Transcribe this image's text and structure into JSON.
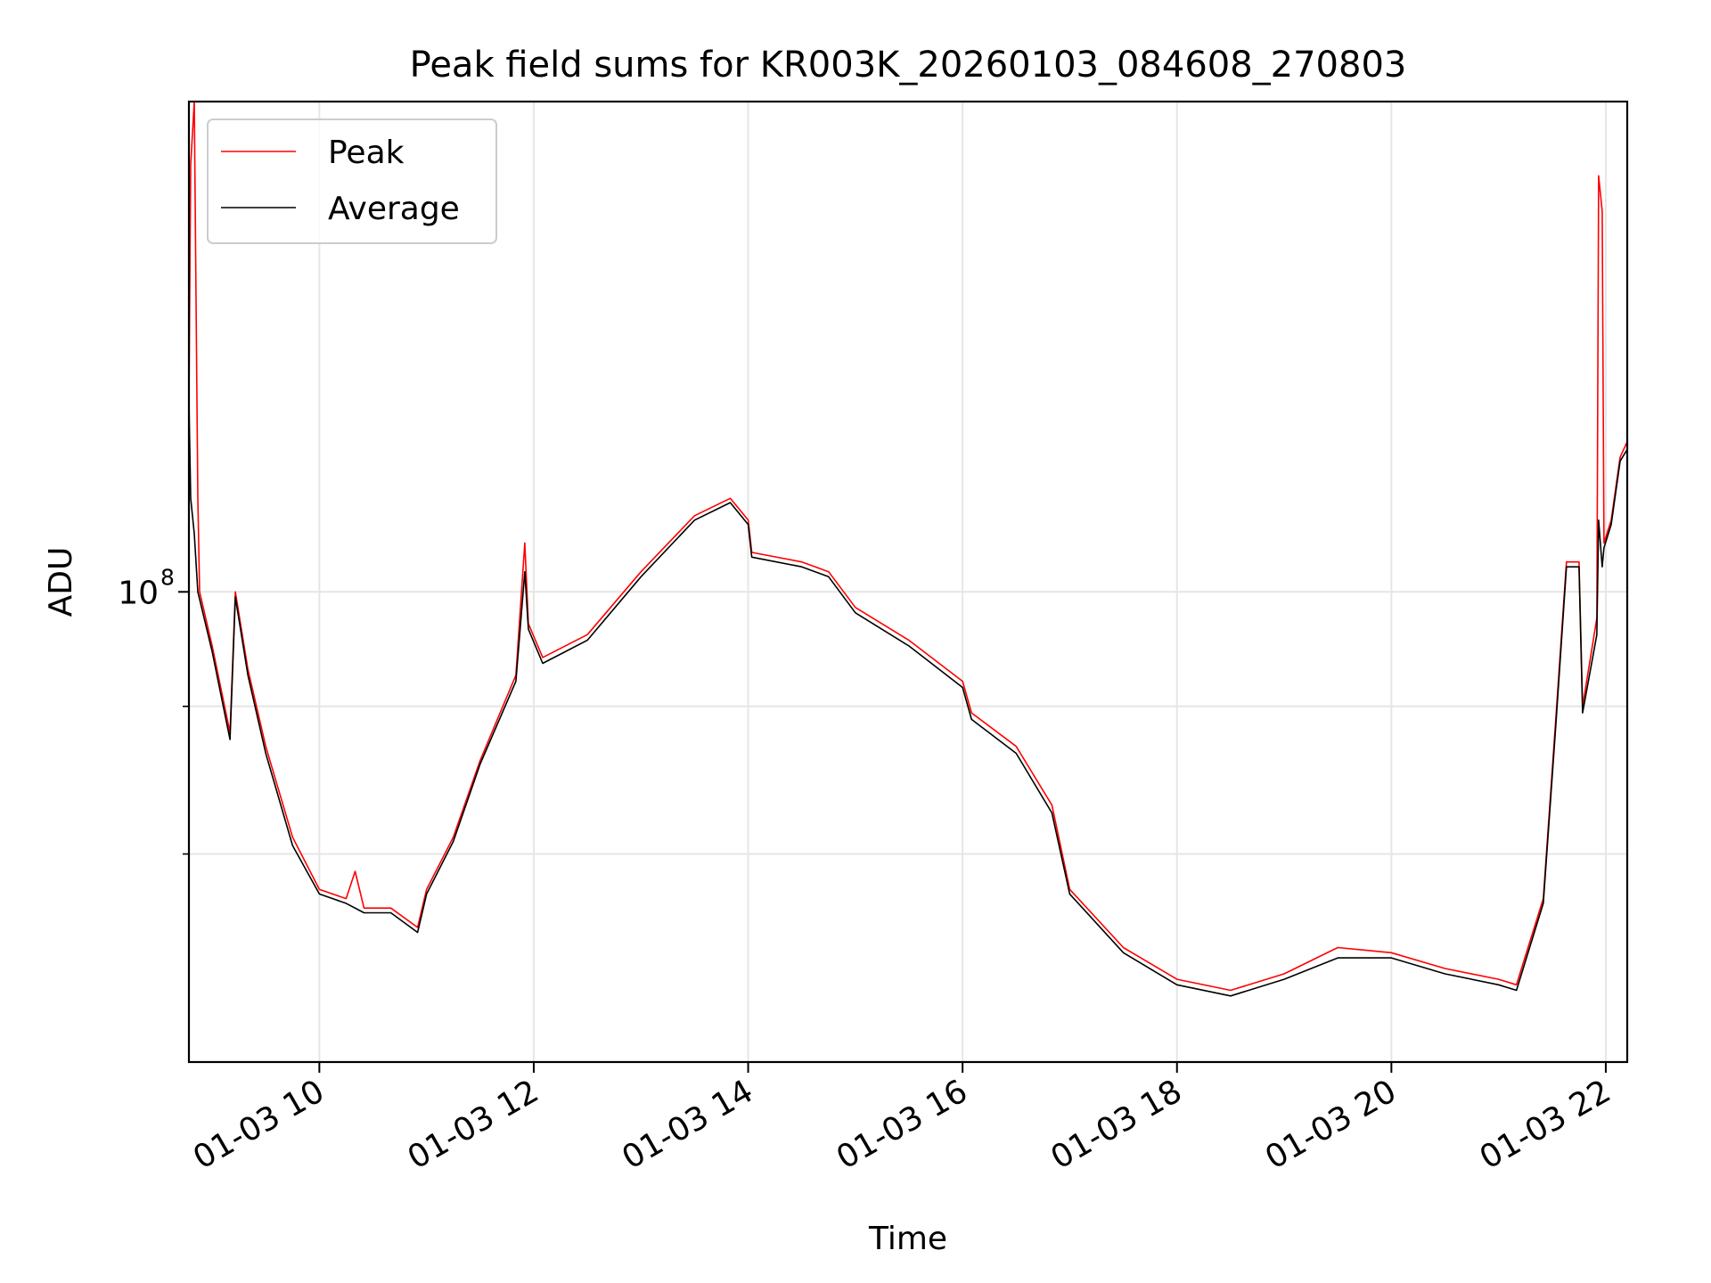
{
  "chart_data": {
    "type": "line",
    "title": "Peak field sums for KR003K_20260103_084608_270803",
    "xlabel": "Time",
    "ylabel": "ADU",
    "yscale": "log",
    "grid": true,
    "legend_position": "top-left",
    "x_range": [
      "2026-01-03 08:47",
      "2026-01-03 22:12"
    ],
    "y_range": [
      40000000,
      260000000
    ],
    "x_ticks": [
      "2026-01-03 10:00",
      "2026-01-03 12:00",
      "2026-01-03 14:00",
      "2026-01-03 16:00",
      "2026-01-03 18:00",
      "2026-01-03 20:00",
      "2026-01-03 22:00"
    ],
    "x_tick_labels": [
      "01-03 10",
      "01-03 12",
      "01-03 14",
      "01-03 16",
      "01-03 18",
      "01-03 20",
      "01-03 22"
    ],
    "y_major_ticks": [
      {
        "value": 100000000,
        "base": "10",
        "exponent": "8"
      }
    ],
    "y_minor_ticks": [
      60000000,
      80000000
    ],
    "series": [
      {
        "name": "Peak",
        "color": "#ff0000",
        "points": [
          [
            "2026-01-03 08:47",
            145000000
          ],
          [
            "2026-01-03 08:48",
            230000000
          ],
          [
            "2026-01-03 08:50",
            260000000
          ],
          [
            "2026-01-03 08:52",
            120000000
          ],
          [
            "2026-01-03 08:53",
            100000000
          ],
          [
            "2026-01-03 09:00",
            90000000
          ],
          [
            "2026-01-03 09:10",
            76000000
          ],
          [
            "2026-01-03 09:13",
            100000000
          ],
          [
            "2026-01-03 09:20",
            86000000
          ],
          [
            "2026-01-03 09:30",
            74000000
          ],
          [
            "2026-01-03 09:45",
            62000000
          ],
          [
            "2026-01-03 10:00",
            56000000
          ],
          [
            "2026-01-03 10:15",
            55000000
          ],
          [
            "2026-01-03 10:20",
            58000000
          ],
          [
            "2026-01-03 10:25",
            54000000
          ],
          [
            "2026-01-03 10:40",
            54000000
          ],
          [
            "2026-01-03 10:55",
            52000000
          ],
          [
            "2026-01-03 11:00",
            56000000
          ],
          [
            "2026-01-03 11:15",
            62000000
          ],
          [
            "2026-01-03 11:30",
            72000000
          ],
          [
            "2026-01-03 11:50",
            85000000
          ],
          [
            "2026-01-03 11:55",
            110000000
          ],
          [
            "2026-01-03 11:57",
            94000000
          ],
          [
            "2026-01-03 12:05",
            88000000
          ],
          [
            "2026-01-03 12:30",
            92000000
          ],
          [
            "2026-01-03 13:00",
            104000000
          ],
          [
            "2026-01-03 13:30",
            116000000
          ],
          [
            "2026-01-03 13:50",
            120000000
          ],
          [
            "2026-01-03 14:00",
            115000000
          ],
          [
            "2026-01-03 14:02",
            108000000
          ],
          [
            "2026-01-03 14:30",
            106000000
          ],
          [
            "2026-01-03 14:45",
            104000000
          ],
          [
            "2026-01-03 15:00",
            97000000
          ],
          [
            "2026-01-03 15:30",
            91000000
          ],
          [
            "2026-01-03 16:00",
            84000000
          ],
          [
            "2026-01-03 16:05",
            79000000
          ],
          [
            "2026-01-03 16:30",
            74000000
          ],
          [
            "2026-01-03 16:50",
            66000000
          ],
          [
            "2026-01-03 17:00",
            56000000
          ],
          [
            "2026-01-03 17:30",
            50000000
          ],
          [
            "2026-01-03 18:00",
            47000000
          ],
          [
            "2026-01-03 18:30",
            46000000
          ],
          [
            "2026-01-03 19:00",
            47500000
          ],
          [
            "2026-01-03 19:30",
            50000000
          ],
          [
            "2026-01-03 20:00",
            49500000
          ],
          [
            "2026-01-03 20:30",
            48000000
          ],
          [
            "2026-01-03 21:00",
            47000000
          ],
          [
            "2026-01-03 21:10",
            46500000
          ],
          [
            "2026-01-03 21:25",
            55000000
          ],
          [
            "2026-01-03 21:32",
            78000000
          ],
          [
            "2026-01-03 21:38",
            106000000
          ],
          [
            "2026-01-03 21:45",
            106000000
          ],
          [
            "2026-01-03 21:47",
            80000000
          ],
          [
            "2026-01-03 21:55",
            95000000
          ],
          [
            "2026-01-03 21:56",
            225000000
          ],
          [
            "2026-01-03 21:58",
            210000000
          ],
          [
            "2026-01-03 21:59",
            110000000
          ],
          [
            "2026-01-03 22:03",
            115000000
          ],
          [
            "2026-01-03 22:08",
            130000000
          ],
          [
            "2026-01-03 22:12",
            134000000
          ]
        ]
      },
      {
        "name": "Average",
        "color": "#000000",
        "points": [
          [
            "2026-01-03 08:47",
            145000000
          ],
          [
            "2026-01-03 08:48",
            120000000
          ],
          [
            "2026-01-03 08:50",
            112000000
          ],
          [
            "2026-01-03 08:52",
            100000000
          ],
          [
            "2026-01-03 09:00",
            89000000
          ],
          [
            "2026-01-03 09:10",
            75000000
          ],
          [
            "2026-01-03 09:13",
            99000000
          ],
          [
            "2026-01-03 09:20",
            85000000
          ],
          [
            "2026-01-03 09:30",
            73000000
          ],
          [
            "2026-01-03 09:45",
            61000000
          ],
          [
            "2026-01-03 10:00",
            55500000
          ],
          [
            "2026-01-03 10:15",
            54500000
          ],
          [
            "2026-01-03 10:25",
            53500000
          ],
          [
            "2026-01-03 10:40",
            53500000
          ],
          [
            "2026-01-03 10:55",
            51500000
          ],
          [
            "2026-01-03 11:00",
            55500000
          ],
          [
            "2026-01-03 11:15",
            61500000
          ],
          [
            "2026-01-03 11:30",
            71500000
          ],
          [
            "2026-01-03 11:50",
            84000000
          ],
          [
            "2026-01-03 11:55",
            104000000
          ],
          [
            "2026-01-03 11:57",
            93000000
          ],
          [
            "2026-01-03 12:05",
            87000000
          ],
          [
            "2026-01-03 12:30",
            91000000
          ],
          [
            "2026-01-03 13:00",
            103000000
          ],
          [
            "2026-01-03 13:30",
            115000000
          ],
          [
            "2026-01-03 13:50",
            119000000
          ],
          [
            "2026-01-03 14:00",
            114000000
          ],
          [
            "2026-01-03 14:02",
            107000000
          ],
          [
            "2026-01-03 14:30",
            105000000
          ],
          [
            "2026-01-03 14:45",
            103000000
          ],
          [
            "2026-01-03 15:00",
            96000000
          ],
          [
            "2026-01-03 15:30",
            90000000
          ],
          [
            "2026-01-03 16:00",
            83000000
          ],
          [
            "2026-01-03 16:05",
            78000000
          ],
          [
            "2026-01-03 16:30",
            73000000
          ],
          [
            "2026-01-03 16:50",
            65000000
          ],
          [
            "2026-01-03 17:00",
            55500000
          ],
          [
            "2026-01-03 17:30",
            49500000
          ],
          [
            "2026-01-03 18:00",
            46500000
          ],
          [
            "2026-01-03 18:30",
            45500000
          ],
          [
            "2026-01-03 19:00",
            47000000
          ],
          [
            "2026-01-03 19:30",
            49000000
          ],
          [
            "2026-01-03 20:00",
            49000000
          ],
          [
            "2026-01-03 20:30",
            47500000
          ],
          [
            "2026-01-03 21:00",
            46500000
          ],
          [
            "2026-01-03 21:10",
            46000000
          ],
          [
            "2026-01-03 21:25",
            54500000
          ],
          [
            "2026-01-03 21:32",
            77000000
          ],
          [
            "2026-01-03 21:38",
            105000000
          ],
          [
            "2026-01-03 21:45",
            105000000
          ],
          [
            "2026-01-03 21:47",
            79000000
          ],
          [
            "2026-01-03 21:55",
            92000000
          ],
          [
            "2026-01-03 21:56",
            115000000
          ],
          [
            "2026-01-03 21:58",
            105000000
          ],
          [
            "2026-01-03 21:59",
            109000000
          ],
          [
            "2026-01-03 22:03",
            114000000
          ],
          [
            "2026-01-03 22:08",
            129000000
          ],
          [
            "2026-01-03 22:12",
            132000000
          ]
        ]
      }
    ]
  }
}
